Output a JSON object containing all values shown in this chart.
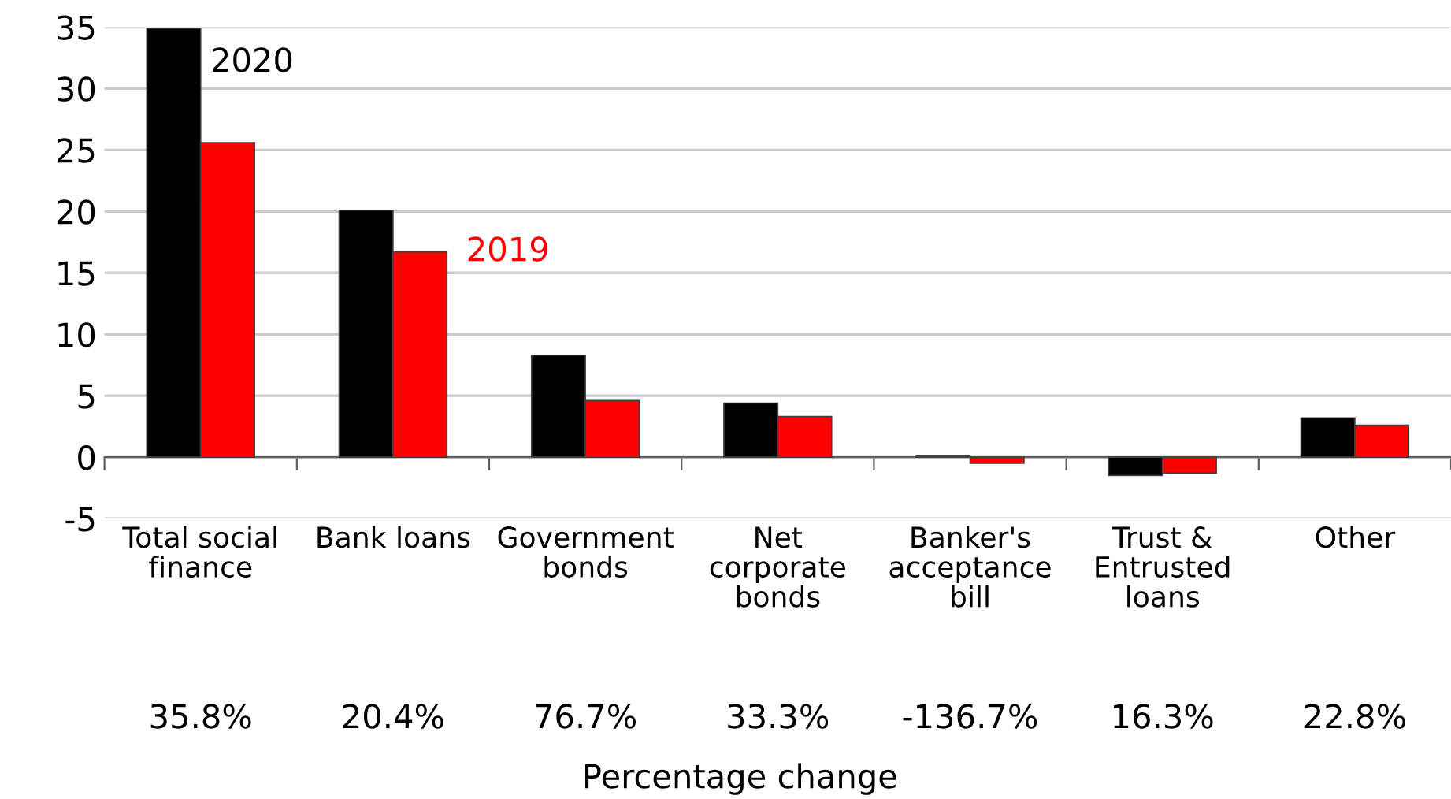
{
  "chart_data": {
    "type": "bar",
    "categories": [
      "Total social\nfinance",
      "Bank loans",
      "Government\nbonds",
      "Net\ncorporate\nbonds",
      "Banker's\nacceptance\nbill",
      "Trust &\nEntrusted\nloans",
      "Other"
    ],
    "series": [
      {
        "name": "2020",
        "color": "#000000",
        "values": [
          34.9,
          20.1,
          8.3,
          4.4,
          0.1,
          -1.5,
          3.2
        ]
      },
      {
        "name": "2019",
        "color": "#ff0000",
        "values": [
          25.6,
          16.7,
          4.6,
          3.3,
          -0.5,
          -1.3,
          2.6
        ]
      }
    ],
    "ylim": [
      -5,
      35
    ],
    "yticks": [
      -5,
      0,
      5,
      10,
      15,
      20,
      25,
      30,
      35
    ],
    "grid": "y",
    "legend": false,
    "xlabel": "Percentage change",
    "annotations": [
      "35.8%",
      "20.4%",
      "76.7%",
      "33.3%",
      "-136.7%",
      "16.3%",
      "22.8%"
    ]
  }
}
